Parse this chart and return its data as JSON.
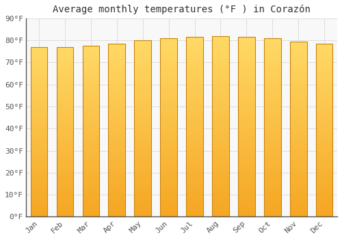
{
  "title": "Average monthly temperatures (°F ) in Corazón",
  "months": [
    "Jan",
    "Feb",
    "Mar",
    "Apr",
    "May",
    "Jun",
    "Jul",
    "Aug",
    "Sep",
    "Oct",
    "Nov",
    "Dec"
  ],
  "values": [
    77.0,
    77.0,
    77.5,
    78.5,
    80.0,
    81.0,
    81.5,
    82.0,
    81.5,
    81.0,
    79.5,
    78.5
  ],
  "bar_color_bottom": "#F5A623",
  "bar_color_top": "#FFD966",
  "bar_edge_color": "#C8820A",
  "background_color": "#FFFFFF",
  "plot_bg_color": "#F8F8F8",
  "grid_color": "#DDDDDD",
  "ylim": [
    0,
    90
  ],
  "yticks": [
    0,
    10,
    20,
    30,
    40,
    50,
    60,
    70,
    80,
    90
  ],
  "ytick_labels": [
    "0°F",
    "10°F",
    "20°F",
    "30°F",
    "40°F",
    "50°F",
    "60°F",
    "70°F",
    "80°F",
    "90°F"
  ],
  "title_fontsize": 10,
  "tick_fontsize": 8,
  "font_family": "monospace",
  "axis_color": "#555555",
  "bar_width": 0.65
}
